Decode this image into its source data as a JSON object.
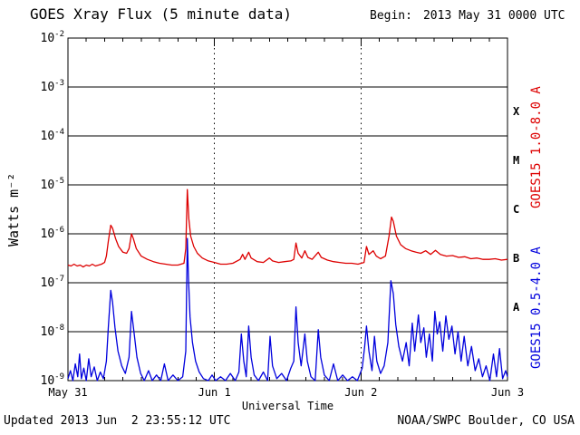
{
  "header": {
    "title": "GOES Xray Flux (5 minute data)",
    "begin_label": "Begin:",
    "begin_value": "2013 May 31 0000 UTC"
  },
  "footer": {
    "updated": "Updated 2013 Jun  2 23:55:12 UTC",
    "org": "NOAA/SWPC Boulder, CO USA"
  },
  "chart_data": {
    "type": "line",
    "title": "GOES Xray Flux (5 minute data)",
    "xlabel": "Universal Time",
    "ylabel": "Watts m⁻²",
    "x_range_hours": [
      0,
      72
    ],
    "y_log_range": [
      -9,
      -2
    ],
    "y_ticks": [
      -2,
      -3,
      -4,
      -5,
      -6,
      -7,
      -8,
      -9
    ],
    "x_ticks": [
      {
        "label": "May 31",
        "hour": 0
      },
      {
        "label": "Jun 1",
        "hour": 24
      },
      {
        "label": "Jun 2",
        "hour": 48
      },
      {
        "label": "Jun 3",
        "hour": 72
      }
    ],
    "x_minor_tick_interval_hours": 3,
    "grid": {
      "horizontal": "solid line each decade",
      "vertical": "dotted line at day boundaries",
      "legend_position": "right-rotated"
    },
    "flare_classes": [
      {
        "label": "X",
        "log_center": -3.5
      },
      {
        "label": "M",
        "log_center": -4.5
      },
      {
        "label": "C",
        "log_center": -5.5
      },
      {
        "label": "B",
        "log_center": -6.5
      },
      {
        "label": "A",
        "log_center": -7.5
      }
    ],
    "series": [
      {
        "name": "GOES15 1.0-8.0 A",
        "color": "#dd0000",
        "points": [
          [
            0,
            2.3e-07
          ],
          [
            0.5,
            2.2e-07
          ],
          [
            1,
            2.4e-07
          ],
          [
            1.5,
            2.2e-07
          ],
          [
            2,
            2.3e-07
          ],
          [
            2.5,
            2.1e-07
          ],
          [
            3,
            2.3e-07
          ],
          [
            3.5,
            2.2e-07
          ],
          [
            4,
            2.4e-07
          ],
          [
            4.5,
            2.2e-07
          ],
          [
            5,
            2.3e-07
          ],
          [
            5.5,
            2.4e-07
          ],
          [
            6,
            2.6e-07
          ],
          [
            6.3,
            3.5e-07
          ],
          [
            6.6,
            7e-07
          ],
          [
            7.0,
            1.5e-06
          ],
          [
            7.3,
            1.3e-06
          ],
          [
            7.8,
            8e-07
          ],
          [
            8.3,
            5.5e-07
          ],
          [
            9,
            4.2e-07
          ],
          [
            9.6,
            4e-07
          ],
          [
            10.0,
            5e-07
          ],
          [
            10.4,
            1e-06
          ],
          [
            10.7,
            8e-07
          ],
          [
            11.2,
            5e-07
          ],
          [
            12,
            3.5e-07
          ],
          [
            13,
            3e-07
          ],
          [
            14,
            2.7e-07
          ],
          [
            15,
            2.5e-07
          ],
          [
            16,
            2.4e-07
          ],
          [
            17,
            2.3e-07
          ],
          [
            18,
            2.3e-07
          ],
          [
            19.0,
            2.5e-07
          ],
          [
            19.3,
            5e-07
          ],
          [
            19.55,
            8e-06
          ],
          [
            19.8,
            2e-06
          ],
          [
            20.1,
            9e-07
          ],
          [
            20.6,
            5.5e-07
          ],
          [
            21.2,
            4e-07
          ],
          [
            22,
            3.2e-07
          ],
          [
            23,
            2.8e-07
          ],
          [
            24,
            2.6e-07
          ],
          [
            25,
            2.4e-07
          ],
          [
            26,
            2.4e-07
          ],
          [
            27,
            2.5e-07
          ],
          [
            28.2,
            3e-07
          ],
          [
            28.6,
            3.8e-07
          ],
          [
            29,
            3e-07
          ],
          [
            29.6,
            4.2e-07
          ],
          [
            30,
            3.2e-07
          ],
          [
            31,
            2.7e-07
          ],
          [
            32,
            2.6e-07
          ],
          [
            33,
            3.2e-07
          ],
          [
            33.5,
            2.8e-07
          ],
          [
            34.5,
            2.6e-07
          ],
          [
            35.5,
            2.7e-07
          ],
          [
            36.5,
            2.8e-07
          ],
          [
            37.0,
            3e-07
          ],
          [
            37.35,
            6.5e-07
          ],
          [
            37.7,
            4e-07
          ],
          [
            38.3,
            3.2e-07
          ],
          [
            38.8,
            4.5e-07
          ],
          [
            39.3,
            3.3e-07
          ],
          [
            40,
            3e-07
          ],
          [
            41,
            4.2e-07
          ],
          [
            41.5,
            3.3e-07
          ],
          [
            42.5,
            2.9e-07
          ],
          [
            43.5,
            2.7e-07
          ],
          [
            44.5,
            2.6e-07
          ],
          [
            45.5,
            2.5e-07
          ],
          [
            46.5,
            2.5e-07
          ],
          [
            47.5,
            2.4e-07
          ],
          [
            48.5,
            2.6e-07
          ],
          [
            48.9,
            5.5e-07
          ],
          [
            49.3,
            3.8e-07
          ],
          [
            50.0,
            4.5e-07
          ],
          [
            50.5,
            3.5e-07
          ],
          [
            51.2,
            3.1e-07
          ],
          [
            52.0,
            3.5e-07
          ],
          [
            52.6,
            9e-07
          ],
          [
            53.0,
            2.2e-06
          ],
          [
            53.3,
            1.8e-06
          ],
          [
            53.8,
            9e-07
          ],
          [
            54.5,
            6e-07
          ],
          [
            55.3,
            5e-07
          ],
          [
            56.2,
            4.5e-07
          ],
          [
            57,
            4.2e-07
          ],
          [
            57.8,
            4e-07
          ],
          [
            58.6,
            4.5e-07
          ],
          [
            59.4,
            3.8e-07
          ],
          [
            60.2,
            4.6e-07
          ],
          [
            61,
            3.8e-07
          ],
          [
            62,
            3.5e-07
          ],
          [
            63,
            3.6e-07
          ],
          [
            64,
            3.3e-07
          ],
          [
            65,
            3.4e-07
          ],
          [
            66,
            3.1e-07
          ],
          [
            67,
            3.2e-07
          ],
          [
            68,
            3e-07
          ],
          [
            69,
            3e-07
          ],
          [
            70,
            3.1e-07
          ],
          [
            71,
            2.9e-07
          ],
          [
            72,
            3e-07
          ]
        ]
      },
      {
        "name": "GOES15 0.5-4.0 A",
        "color": "#0000dd",
        "points": [
          [
            0,
            1.1e-09
          ],
          [
            0.4,
            1.6e-09
          ],
          [
            0.8,
            1e-09
          ],
          [
            1.2,
            2.2e-09
          ],
          [
            1.6,
            1.2e-09
          ],
          [
            1.9,
            3.5e-09
          ],
          [
            2.2,
            1.1e-09
          ],
          [
            2.6,
            1.8e-09
          ],
          [
            3.0,
            1e-09
          ],
          [
            3.4,
            2.8e-09
          ],
          [
            3.8,
            1.2e-09
          ],
          [
            4.3,
            1.9e-09
          ],
          [
            4.8,
            1e-09
          ],
          [
            5.3,
            1.5e-09
          ],
          [
            5.8,
            1.1e-09
          ],
          [
            6.3,
            2.5e-09
          ],
          [
            6.6,
            1.2e-08
          ],
          [
            7.0,
            7e-08
          ],
          [
            7.3,
            4e-08
          ],
          [
            7.7,
            1.2e-08
          ],
          [
            8.2,
            4e-09
          ],
          [
            8.8,
            2e-09
          ],
          [
            9.4,
            1.4e-09
          ],
          [
            10.0,
            3e-09
          ],
          [
            10.4,
            2.6e-08
          ],
          [
            10.8,
            1e-08
          ],
          [
            11.3,
            3e-09
          ],
          [
            11.9,
            1.4e-09
          ],
          [
            12.5,
            1e-09
          ],
          [
            13.2,
            1.6e-09
          ],
          [
            13.8,
            1e-09
          ],
          [
            14.5,
            1.3e-09
          ],
          [
            15.2,
            1e-09
          ],
          [
            15.8,
            2.2e-09
          ],
          [
            16.4,
            1e-09
          ],
          [
            17.2,
            1.3e-09
          ],
          [
            18.0,
            1e-09
          ],
          [
            18.8,
            1.2e-09
          ],
          [
            19.3,
            4e-09
          ],
          [
            19.55,
            8e-07
          ],
          [
            19.75,
            1.2e-07
          ],
          [
            20.0,
            2e-08
          ],
          [
            20.4,
            6e-09
          ],
          [
            20.9,
            2.5e-09
          ],
          [
            21.5,
            1.5e-09
          ],
          [
            22.2,
            1.1e-09
          ],
          [
            23,
            1e-09
          ],
          [
            23.6,
            1.3e-09
          ],
          [
            24.2,
            1e-09
          ],
          [
            25,
            1.2e-09
          ],
          [
            25.8,
            1e-09
          ],
          [
            26.6,
            1.4e-09
          ],
          [
            27.4,
            1e-09
          ],
          [
            28.0,
            1.5e-09
          ],
          [
            28.4,
            9e-09
          ],
          [
            28.8,
            2.5e-09
          ],
          [
            29.2,
            1.2e-09
          ],
          [
            29.6,
            1.3e-08
          ],
          [
            30.0,
            3e-09
          ],
          [
            30.5,
            1.3e-09
          ],
          [
            31.2,
            1e-09
          ],
          [
            32.0,
            1.5e-09
          ],
          [
            32.7,
            1e-09
          ],
          [
            33.1,
            8e-09
          ],
          [
            33.5,
            2e-09
          ],
          [
            34.2,
            1.1e-09
          ],
          [
            35,
            1.4e-09
          ],
          [
            35.8,
            1e-09
          ],
          [
            36.5,
            1.8e-09
          ],
          [
            37.0,
            2.5e-09
          ],
          [
            37.35,
            3.2e-08
          ],
          [
            37.7,
            6e-09
          ],
          [
            38.2,
            2e-09
          ],
          [
            38.8,
            9e-09
          ],
          [
            39.2,
            2.5e-09
          ],
          [
            39.8,
            1.2e-09
          ],
          [
            40.5,
            1e-09
          ],
          [
            41.0,
            1.1e-08
          ],
          [
            41.4,
            3e-09
          ],
          [
            42.0,
            1.3e-09
          ],
          [
            42.8,
            1e-09
          ],
          [
            43.5,
            2.2e-09
          ],
          [
            44.2,
            1e-09
          ],
          [
            45.0,
            1.3e-09
          ],
          [
            45.8,
            1e-09
          ],
          [
            46.6,
            1.2e-09
          ],
          [
            47.4,
            1e-09
          ],
          [
            48.2,
            1.8e-09
          ],
          [
            48.6,
            5e-09
          ],
          [
            48.9,
            1.3e-08
          ],
          [
            49.3,
            4e-09
          ],
          [
            49.8,
            1.6e-09
          ],
          [
            50.2,
            8e-09
          ],
          [
            50.6,
            2.5e-09
          ],
          [
            51.2,
            1.4e-09
          ],
          [
            51.8,
            2e-09
          ],
          [
            52.4,
            6e-09
          ],
          [
            52.9,
            1.1e-07
          ],
          [
            53.3,
            6e-08
          ],
          [
            53.7,
            1.4e-08
          ],
          [
            54.2,
            5e-09
          ],
          [
            54.8,
            2.5e-09
          ],
          [
            55.4,
            6e-09
          ],
          [
            55.9,
            2e-09
          ],
          [
            56.4,
            1.5e-08
          ],
          [
            56.8,
            4e-09
          ],
          [
            57.4,
            2.2e-08
          ],
          [
            57.8,
            6e-09
          ],
          [
            58.3,
            1.2e-08
          ],
          [
            58.7,
            3e-09
          ],
          [
            59.2,
            9e-09
          ],
          [
            59.7,
            2.5e-09
          ],
          [
            60.1,
            2.6e-08
          ],
          [
            60.5,
            9e-09
          ],
          [
            60.9,
            1.6e-08
          ],
          [
            61.4,
            4e-09
          ],
          [
            61.9,
            2.1e-08
          ],
          [
            62.4,
            7e-09
          ],
          [
            62.9,
            1.3e-08
          ],
          [
            63.4,
            3.5e-09
          ],
          [
            63.9,
            1e-08
          ],
          [
            64.4,
            2.5e-09
          ],
          [
            64.9,
            8e-09
          ],
          [
            65.5,
            2e-09
          ],
          [
            66.1,
            5e-09
          ],
          [
            66.7,
            1.6e-09
          ],
          [
            67.3,
            2.8e-09
          ],
          [
            67.9,
            1.2e-09
          ],
          [
            68.5,
            2e-09
          ],
          [
            69.1,
            1e-09
          ],
          [
            69.7,
            3.5e-09
          ],
          [
            70.2,
            1.2e-09
          ],
          [
            70.7,
            4.5e-09
          ],
          [
            71.2,
            1.1e-09
          ],
          [
            71.7,
            1.6e-09
          ],
          [
            72,
            1.2e-09
          ]
        ]
      }
    ]
  }
}
